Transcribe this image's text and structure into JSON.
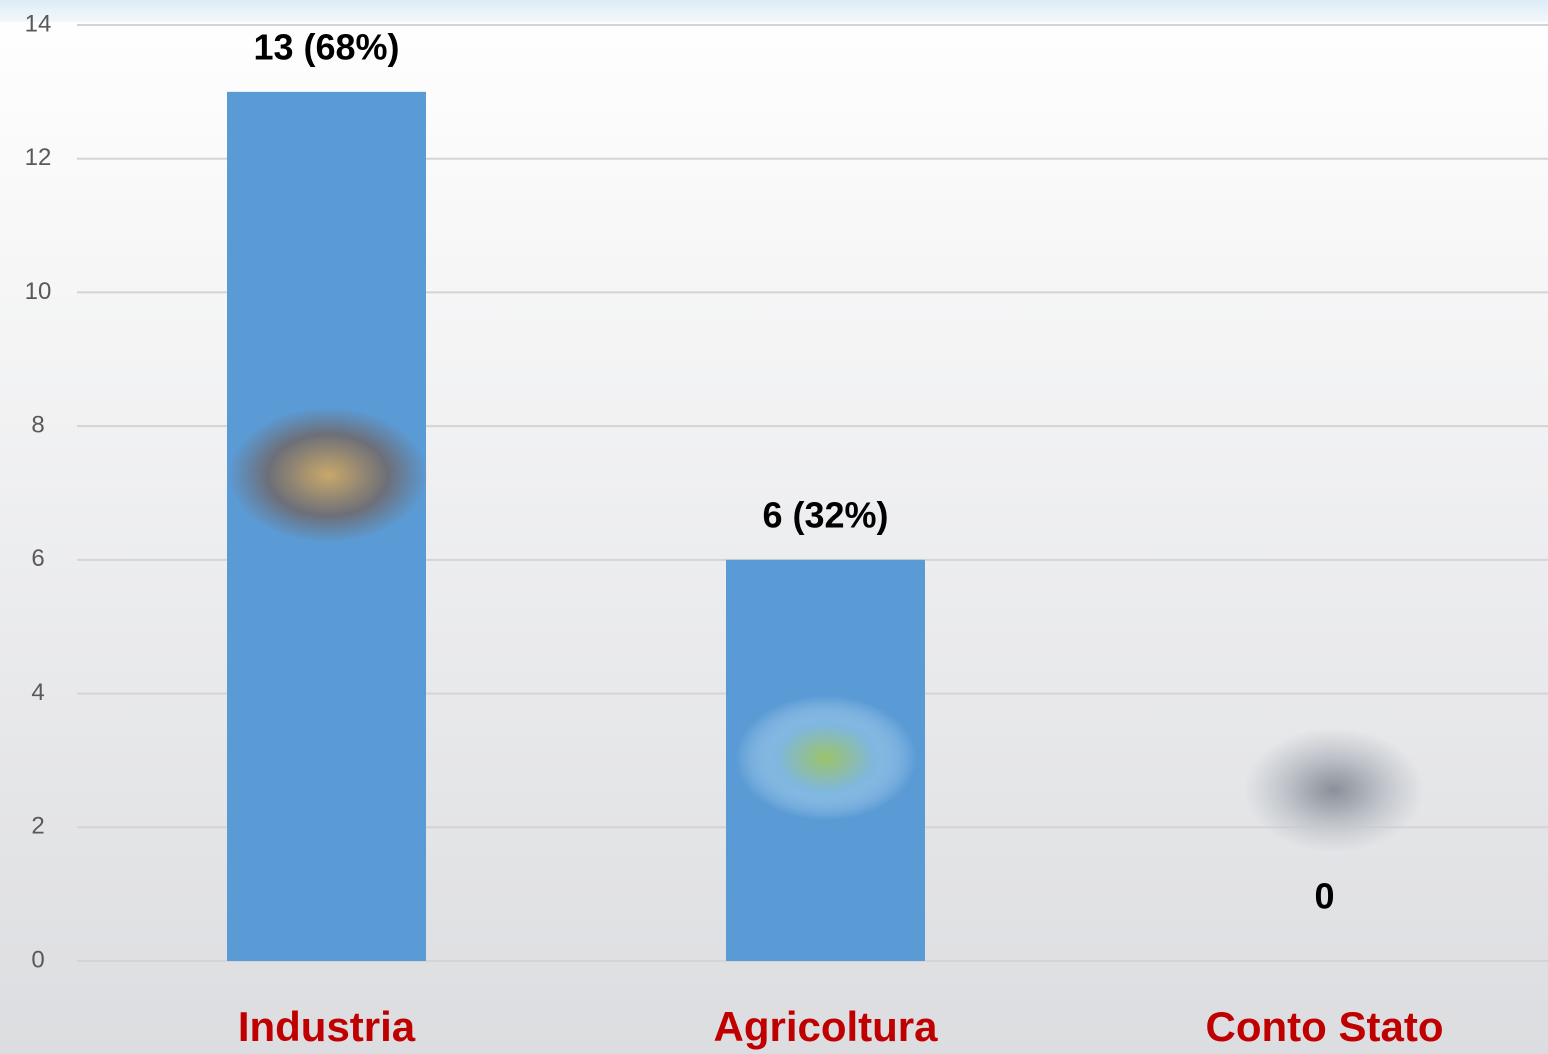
{
  "chart_data": {
    "type": "bar",
    "categories": [
      "Industria",
      "Agricoltura",
      "Conto Stato"
    ],
    "values": [
      13,
      6,
      0
    ],
    "value_labels": [
      "13 (68%)",
      "6 (32%)",
      "0"
    ],
    "color": "#5b9bd5",
    "ylim": [
      0,
      14
    ],
    "yticks": [
      0,
      2,
      4,
      6,
      8,
      10,
      12,
      14
    ],
    "grid": true
  }
}
